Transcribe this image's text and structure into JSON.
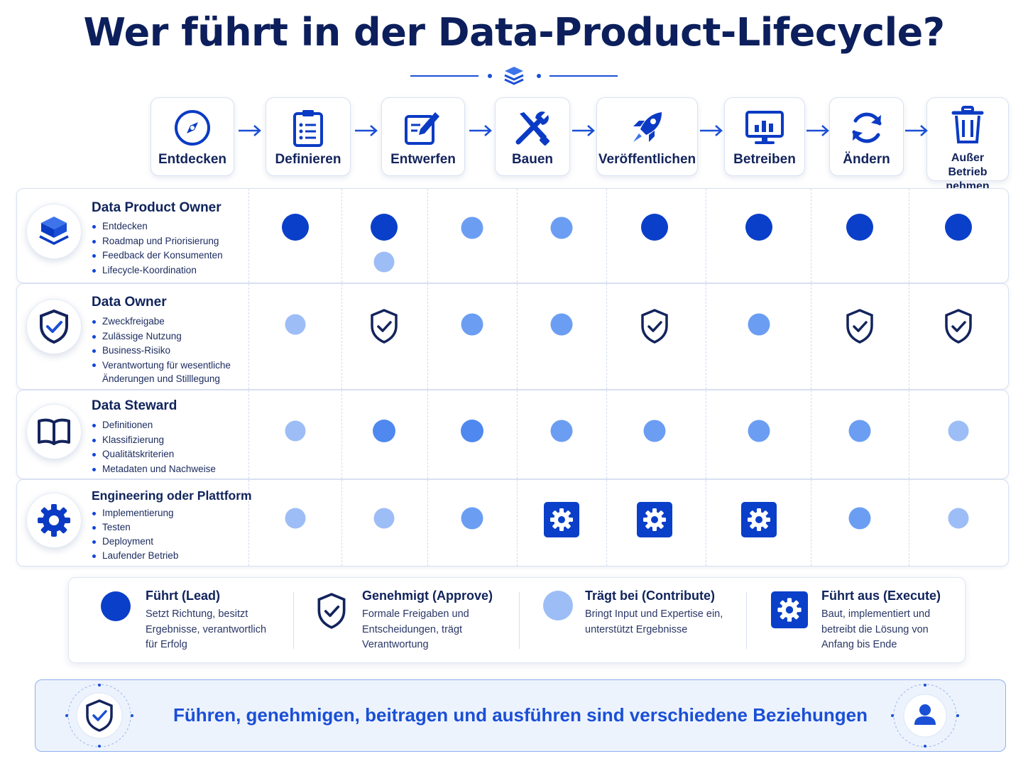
{
  "title": "Wer führt in der Data-Product-Lifecycle?",
  "colors": {
    "lead": "#0a3fc9",
    "contribute": "#9dbdf6",
    "navy": "#13245c",
    "accent": "#1a4fd6"
  },
  "stages": [
    {
      "label": "Entdecken",
      "icon": "compass-icon"
    },
    {
      "label": "Definieren",
      "icon": "clipboard-icon"
    },
    {
      "label": "Entwerfen",
      "icon": "edit-icon"
    },
    {
      "label": "Bauen",
      "icon": "tools-icon"
    },
    {
      "label": "Veröffentlichen",
      "icon": "rocket-icon"
    },
    {
      "label": "Betreiben",
      "icon": "monitor-chart-icon"
    },
    {
      "label": "Ändern",
      "icon": "refresh-icon"
    },
    {
      "label": "Außer Betrieb nehmen",
      "icon": "trash-icon"
    }
  ],
  "roles": [
    {
      "title": "Data Product Owner",
      "icon": "layers-icon",
      "bullets": [
        "Entdecken",
        "Roadmap und Priorisierung",
        "Feedback der Konsumenten",
        "Lifecycle-Koordination"
      ]
    },
    {
      "title": "Data Owner",
      "icon": "shield-check-icon",
      "bullets": [
        "Zweckfreigabe",
        "Zulässige Nutzung",
        "Business-Risiko",
        "Verantwortung für wesentliche Änderungen und Stilllegung"
      ]
    },
    {
      "title": "Data Steward",
      "icon": "book-icon",
      "bullets": [
        "Definitionen",
        "Klassifizierung",
        "Qualitätskriterien",
        "Metadaten und Nachweise"
      ]
    },
    {
      "title": "Engineering oder Plattform",
      "icon": "gear-icon",
      "bullets": [
        "Implementierung",
        "Testen",
        "Deployment",
        "Laufender Betrieb"
      ]
    }
  ],
  "matrix": [
    [
      "lead",
      "lead+contribute",
      "contribute",
      "contribute",
      "lead",
      "lead",
      "lead",
      "lead"
    ],
    [
      "contribute",
      "approve",
      "contribute",
      "contribute",
      "approve",
      "contribute",
      "approve",
      "approve"
    ],
    [
      "contribute",
      "contribute",
      "contribute",
      "contribute",
      "contribute",
      "contribute",
      "contribute",
      "contribute"
    ],
    [
      "contribute",
      "contribute",
      "contribute",
      "execute",
      "execute",
      "execute",
      "contribute",
      "contribute"
    ]
  ],
  "legend": [
    {
      "key": "lead",
      "title": "Führt (Lead)",
      "desc": [
        "Setzt Richtung, besitzt",
        "Ergebnisse, verantwortlich",
        "für Erfolg"
      ]
    },
    {
      "key": "approve",
      "title": "Genehmigt (Approve)",
      "desc": [
        "Formale Freigaben und",
        "Entscheidungen, trägt",
        "Verantwortung"
      ]
    },
    {
      "key": "contribute",
      "title": "Trägt bei (Contribute)",
      "desc": [
        "Bringt Input und Expertise ein,",
        "unterstützt Ergebnisse"
      ]
    },
    {
      "key": "execute",
      "title": "Führt aus (Execute)",
      "desc": [
        "Baut, implementiert und",
        "betreibt die Lösung von",
        "Anfang bis Ende"
      ]
    }
  ],
  "footer": {
    "text": "Führen, genehmigen, beitragen und ausführen sind verschiedene Beziehungen",
    "left_icon": "shield-check-icon",
    "right_icon": "user-icon"
  }
}
